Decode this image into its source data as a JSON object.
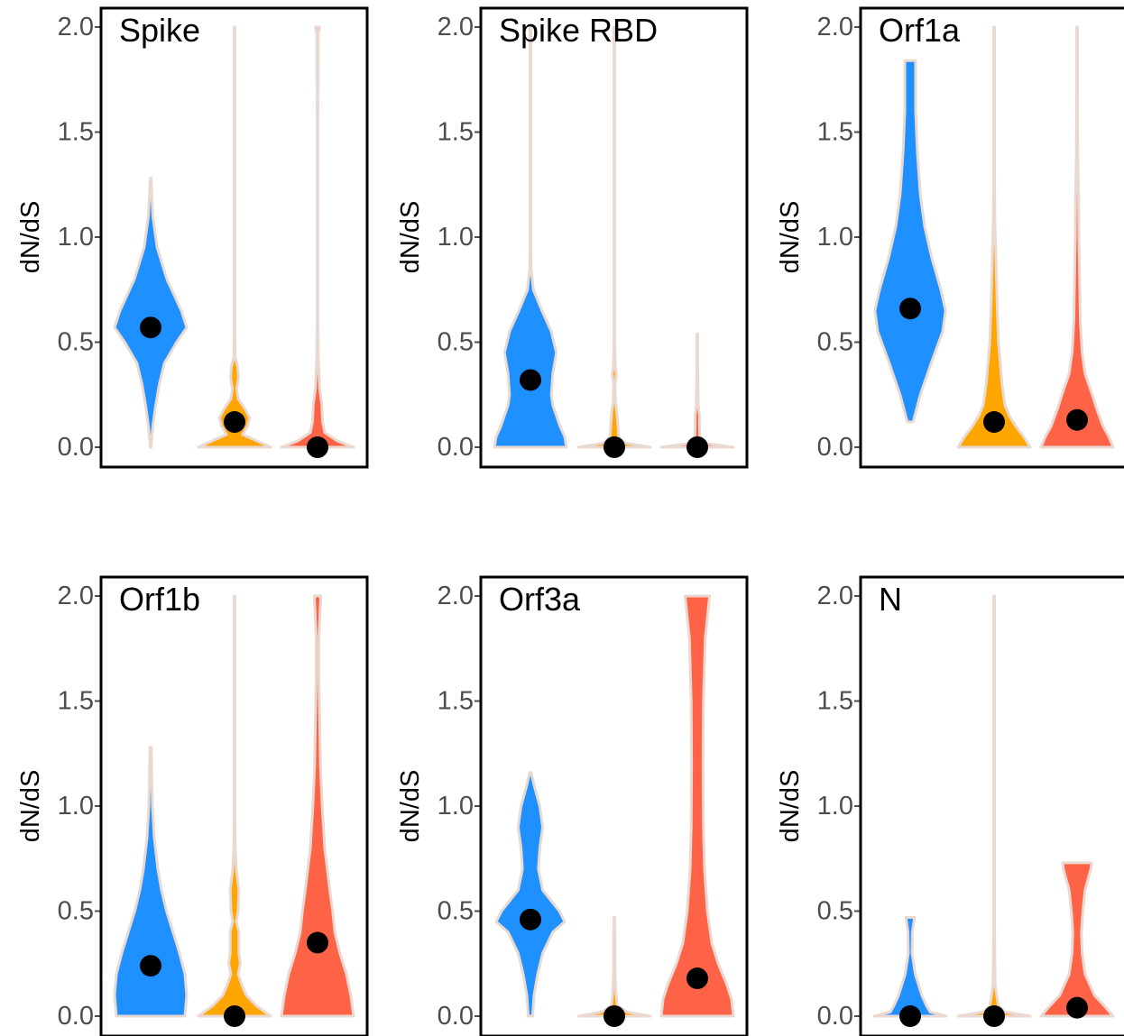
{
  "chart_data": [
    {
      "type": "violin",
      "title": "Spike",
      "ylabel": "dN/dS",
      "ylim": [
        0,
        2.0
      ],
      "yticks": [
        "0.0",
        "0.5",
        "1.0",
        "1.5",
        "2.0"
      ],
      "series": [
        {
          "color": "#1e90ff",
          "median": 0.57,
          "profile": [
            [
              0.0,
              0.01
            ],
            [
              0.1,
              0.06
            ],
            [
              0.2,
              0.14
            ],
            [
              0.3,
              0.24
            ],
            [
              0.4,
              0.38
            ],
            [
              0.5,
              0.72
            ],
            [
              0.57,
              1.0
            ],
            [
              0.65,
              0.85
            ],
            [
              0.8,
              0.45
            ],
            [
              0.95,
              0.18
            ],
            [
              1.1,
              0.06
            ],
            [
              1.28,
              0.01
            ]
          ]
        },
        {
          "color": "#ffa500",
          "median": 0.12,
          "profile": [
            [
              0.0,
              1.0
            ],
            [
              0.03,
              0.62
            ],
            [
              0.06,
              0.22
            ],
            [
              0.1,
              0.36
            ],
            [
              0.14,
              0.42
            ],
            [
              0.18,
              0.3
            ],
            [
              0.23,
              0.1
            ],
            [
              0.28,
              0.06
            ],
            [
              0.33,
              0.11
            ],
            [
              0.38,
              0.09
            ],
            [
              0.43,
              0.02
            ],
            [
              0.6,
              0.01
            ],
            [
              1.0,
              0.01
            ],
            [
              1.5,
              0.01
            ],
            [
              2.0,
              0.01
            ]
          ]
        },
        {
          "color": "#ff6347",
          "median": 0.0,
          "profile": [
            [
              0.0,
              1.0
            ],
            [
              0.03,
              0.55
            ],
            [
              0.07,
              0.2
            ],
            [
              0.12,
              0.14
            ],
            [
              0.2,
              0.12
            ],
            [
              0.28,
              0.06
            ],
            [
              0.35,
              0.04
            ],
            [
              0.45,
              0.02
            ],
            [
              0.6,
              0.01
            ],
            [
              1.0,
              0.01
            ],
            [
              1.5,
              0.01
            ],
            [
              1.97,
              0.02
            ],
            [
              2.0,
              0.06
            ]
          ]
        }
      ]
    },
    {
      "type": "violin",
      "title": "Spike RBD",
      "ylabel": "dN/dS",
      "ylim": [
        0,
        2.0
      ],
      "yticks": [
        "0.0",
        "0.5",
        "1.0",
        "1.5",
        "2.0"
      ],
      "series": [
        {
          "color": "#1e90ff",
          "median": 0.32,
          "profile": [
            [
              0.0,
              1.0
            ],
            [
              0.05,
              0.95
            ],
            [
              0.1,
              0.82
            ],
            [
              0.2,
              0.62
            ],
            [
              0.25,
              0.58
            ],
            [
              0.35,
              0.62
            ],
            [
              0.45,
              0.72
            ],
            [
              0.55,
              0.58
            ],
            [
              0.65,
              0.32
            ],
            [
              0.75,
              0.08
            ],
            [
              0.85,
              0.02
            ],
            [
              1.0,
              0.01
            ],
            [
              1.5,
              0.01
            ],
            [
              2.0,
              0.01
            ]
          ]
        },
        {
          "color": "#ffa500",
          "median": 0.0,
          "profile": [
            [
              0.0,
              1.0
            ],
            [
              0.02,
              0.3
            ],
            [
              0.05,
              0.12
            ],
            [
              0.1,
              0.1
            ],
            [
              0.17,
              0.07
            ],
            [
              0.22,
              0.03
            ],
            [
              0.3,
              0.02
            ],
            [
              0.35,
              0.06
            ],
            [
              0.38,
              0.03
            ],
            [
              0.5,
              0.01
            ],
            [
              1.0,
              0.01
            ],
            [
              1.5,
              0.01
            ],
            [
              2.0,
              0.01
            ]
          ]
        },
        {
          "color": "#ff6347",
          "median": 0.0,
          "profile": [
            [
              0.0,
              1.0
            ],
            [
              0.02,
              0.15
            ],
            [
              0.05,
              0.07
            ],
            [
              0.1,
              0.06
            ],
            [
              0.15,
              0.06
            ],
            [
              0.2,
              0.03
            ],
            [
              0.28,
              0.02
            ],
            [
              0.4,
              0.01
            ],
            [
              0.54,
              0.01
            ]
          ]
        }
      ]
    },
    {
      "type": "violin",
      "title": "Orf1a",
      "ylabel": "dN/dS",
      "ylim": [
        0,
        2.0
      ],
      "yticks": [
        "0.0",
        "0.5",
        "1.0",
        "1.5",
        "2.0"
      ],
      "series": [
        {
          "color": "#1e90ff",
          "median": 0.66,
          "profile": [
            [
              0.12,
              0.08
            ],
            [
              0.25,
              0.28
            ],
            [
              0.4,
              0.58
            ],
            [
              0.55,
              0.9
            ],
            [
              0.65,
              0.98
            ],
            [
              0.75,
              0.85
            ],
            [
              0.9,
              0.6
            ],
            [
              1.05,
              0.4
            ],
            [
              1.2,
              0.28
            ],
            [
              1.4,
              0.2
            ],
            [
              1.6,
              0.15
            ],
            [
              1.84,
              0.15
            ]
          ]
        },
        {
          "color": "#ffa500",
          "median": 0.12,
          "profile": [
            [
              0.0,
              1.0
            ],
            [
              0.05,
              0.82
            ],
            [
              0.1,
              0.6
            ],
            [
              0.15,
              0.42
            ],
            [
              0.2,
              0.3
            ],
            [
              0.3,
              0.22
            ],
            [
              0.4,
              0.17
            ],
            [
              0.5,
              0.12
            ],
            [
              0.7,
              0.08
            ],
            [
              0.9,
              0.05
            ],
            [
              1.1,
              0.02
            ],
            [
              1.4,
              0.01
            ],
            [
              2.0,
              0.01
            ]
          ]
        },
        {
          "color": "#ff6347",
          "median": 0.13,
          "profile": [
            [
              0.0,
              1.0
            ],
            [
              0.05,
              0.88
            ],
            [
              0.1,
              0.72
            ],
            [
              0.18,
              0.55
            ],
            [
              0.25,
              0.42
            ],
            [
              0.35,
              0.22
            ],
            [
              0.45,
              0.14
            ],
            [
              0.6,
              0.09
            ],
            [
              0.8,
              0.07
            ],
            [
              1.0,
              0.05
            ],
            [
              1.2,
              0.04
            ],
            [
              1.4,
              0.02
            ],
            [
              1.7,
              0.01
            ],
            [
              2.0,
              0.01
            ]
          ]
        }
      ]
    },
    {
      "type": "violin",
      "title": "Orf1b",
      "ylabel": "dN/dS",
      "ylim": [
        0,
        2.0
      ],
      "yticks": [
        "0.0",
        "0.5",
        "1.0",
        "1.5",
        "2.0"
      ],
      "series": [
        {
          "color": "#1e90ff",
          "median": 0.24,
          "profile": [
            [
              0.0,
              0.95
            ],
            [
              0.1,
              1.0
            ],
            [
              0.2,
              0.95
            ],
            [
              0.3,
              0.8
            ],
            [
              0.4,
              0.62
            ],
            [
              0.5,
              0.44
            ],
            [
              0.6,
              0.3
            ],
            [
              0.7,
              0.2
            ],
            [
              0.85,
              0.1
            ],
            [
              1.0,
              0.05
            ],
            [
              1.15,
              0.03
            ],
            [
              1.28,
              0.02
            ]
          ]
        },
        {
          "color": "#ffa500",
          "median": 0.0,
          "profile": [
            [
              0.0,
              1.0
            ],
            [
              0.05,
              0.6
            ],
            [
              0.1,
              0.32
            ],
            [
              0.15,
              0.2
            ],
            [
              0.2,
              0.1
            ],
            [
              0.25,
              0.16
            ],
            [
              0.3,
              0.12
            ],
            [
              0.4,
              0.12
            ],
            [
              0.45,
              0.05
            ],
            [
              0.5,
              0.1
            ],
            [
              0.6,
              0.12
            ],
            [
              0.7,
              0.05
            ],
            [
              0.8,
              0.02
            ],
            [
              1.0,
              0.01
            ],
            [
              1.5,
              0.01
            ],
            [
              2.0,
              0.01
            ]
          ]
        },
        {
          "color": "#ff6347",
          "median": 0.35,
          "profile": [
            [
              0.0,
              1.0
            ],
            [
              0.1,
              0.92
            ],
            [
              0.2,
              0.8
            ],
            [
              0.3,
              0.62
            ],
            [
              0.4,
              0.48
            ],
            [
              0.5,
              0.42
            ],
            [
              0.6,
              0.34
            ],
            [
              0.8,
              0.2
            ],
            [
              1.0,
              0.13
            ],
            [
              1.2,
              0.08
            ],
            [
              1.4,
              0.06
            ],
            [
              1.6,
              0.04
            ],
            [
              1.8,
              0.04
            ],
            [
              2.0,
              0.09
            ]
          ]
        }
      ]
    },
    {
      "type": "violin",
      "title": "Orf3a",
      "ylabel": "dN/dS",
      "ylim": [
        0,
        2.0
      ],
      "yticks": [
        "0.0",
        "0.5",
        "1.0",
        "1.5",
        "2.0"
      ],
      "series": [
        {
          "color": "#1e90ff",
          "median": 0.46,
          "profile": [
            [
              0.0,
              0.06
            ],
            [
              0.1,
              0.1
            ],
            [
              0.2,
              0.2
            ],
            [
              0.3,
              0.34
            ],
            [
              0.4,
              0.62
            ],
            [
              0.45,
              0.95
            ],
            [
              0.5,
              0.8
            ],
            [
              0.6,
              0.34
            ],
            [
              0.7,
              0.22
            ],
            [
              0.8,
              0.26
            ],
            [
              0.9,
              0.34
            ],
            [
              1.0,
              0.26
            ],
            [
              1.1,
              0.1
            ],
            [
              1.16,
              0.02
            ]
          ]
        },
        {
          "color": "#ffa500",
          "median": 0.0,
          "profile": [
            [
              0.0,
              1.0
            ],
            [
              0.02,
              0.35
            ],
            [
              0.05,
              0.08
            ],
            [
              0.1,
              0.05
            ],
            [
              0.15,
              0.03
            ],
            [
              0.25,
              0.02
            ],
            [
              0.35,
              0.02
            ],
            [
              0.47,
              0.01
            ]
          ]
        },
        {
          "color": "#ff6347",
          "median": 0.18,
          "profile": [
            [
              0.0,
              1.0
            ],
            [
              0.08,
              0.95
            ],
            [
              0.15,
              0.82
            ],
            [
              0.25,
              0.58
            ],
            [
              0.35,
              0.4
            ],
            [
              0.5,
              0.28
            ],
            [
              0.7,
              0.2
            ],
            [
              0.9,
              0.17
            ],
            [
              1.2,
              0.16
            ],
            [
              1.5,
              0.17
            ],
            [
              1.8,
              0.22
            ],
            [
              2.0,
              0.34
            ]
          ]
        }
      ]
    },
    {
      "type": "violin",
      "title": "N",
      "ylabel": "dN/dS",
      "ylim": [
        0,
        2.0
      ],
      "yticks": [
        "0.0",
        "0.5",
        "1.0",
        "1.5",
        "2.0"
      ],
      "series": [
        {
          "color": "#1e90ff",
          "median": 0.0,
          "profile": [
            [
              0.0,
              1.0
            ],
            [
              0.02,
              0.55
            ],
            [
              0.05,
              0.45
            ],
            [
              0.1,
              0.32
            ],
            [
              0.2,
              0.14
            ],
            [
              0.3,
              0.05
            ],
            [
              0.4,
              0.06
            ],
            [
              0.47,
              0.12
            ]
          ]
        },
        {
          "color": "#ffa500",
          "median": 0.0,
          "profile": [
            [
              0.0,
              1.0
            ],
            [
              0.02,
              0.3
            ],
            [
              0.05,
              0.12
            ],
            [
              0.1,
              0.07
            ],
            [
              0.15,
              0.03
            ],
            [
              0.3,
              0.02
            ],
            [
              0.5,
              0.01
            ],
            [
              1.0,
              0.01
            ],
            [
              1.5,
              0.01
            ],
            [
              2.0,
              0.01
            ]
          ]
        },
        {
          "color": "#ff6347",
          "median": 0.04,
          "profile": [
            [
              0.0,
              1.0
            ],
            [
              0.05,
              0.75
            ],
            [
              0.1,
              0.48
            ],
            [
              0.2,
              0.22
            ],
            [
              0.3,
              0.14
            ],
            [
              0.4,
              0.12
            ],
            [
              0.5,
              0.16
            ],
            [
              0.6,
              0.22
            ],
            [
              0.7,
              0.38
            ],
            [
              0.73,
              0.4
            ]
          ]
        }
      ]
    }
  ]
}
